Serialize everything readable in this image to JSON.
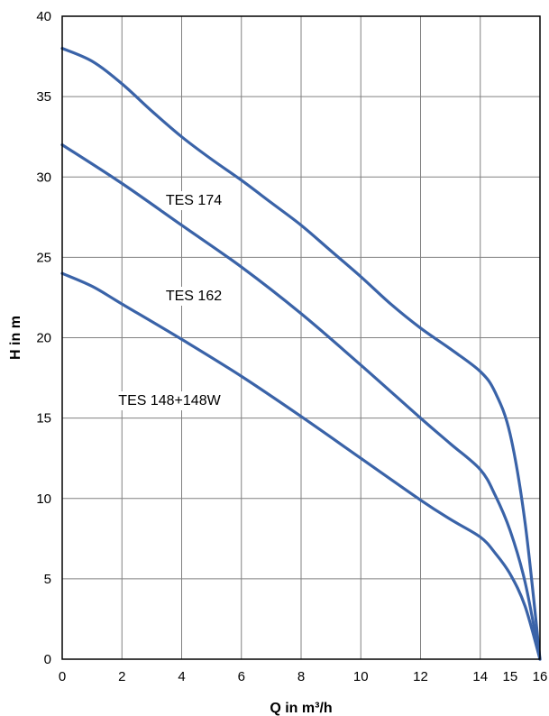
{
  "chart_data": {
    "type": "line",
    "xlabel": "Q in m³/h",
    "ylabel": "H in m",
    "xlim": [
      0,
      16
    ],
    "ylim": [
      0,
      40
    ],
    "xticks": [
      0,
      2,
      4,
      6,
      8,
      10,
      12,
      14,
      15,
      16
    ],
    "yticks": [
      0,
      5,
      10,
      15,
      20,
      25,
      30,
      35,
      40
    ],
    "grid": true,
    "line_color": "#3a63a8",
    "series": [
      {
        "name": "TES 174",
        "x": [
          0,
          1,
          2,
          3,
          4,
          5,
          6,
          7,
          8,
          9,
          10,
          11,
          12,
          13,
          14,
          14.5,
          15,
          15.5,
          16
        ],
        "y": [
          38,
          37.2,
          35.8,
          34.1,
          32.5,
          31.1,
          29.8,
          28.4,
          27.0,
          25.4,
          23.8,
          22.1,
          20.6,
          19.3,
          17.9,
          16.6,
          14.0,
          8.5,
          0
        ]
      },
      {
        "name": "TES 162",
        "x": [
          0,
          2,
          4,
          6,
          8,
          10,
          12,
          13,
          14,
          14.5,
          15,
          15.5,
          16
        ],
        "y": [
          32,
          29.6,
          27.0,
          24.4,
          21.5,
          18.3,
          15.0,
          13.4,
          11.8,
          10.2,
          8.0,
          4.8,
          0
        ]
      },
      {
        "name": "TES 148+148W",
        "x": [
          0,
          1,
          2,
          4,
          6,
          8,
          10,
          12,
          13,
          14,
          14.5,
          15,
          15.5,
          16
        ],
        "y": [
          24,
          23.2,
          22.1,
          19.9,
          17.6,
          15.1,
          12.5,
          9.9,
          8.7,
          7.6,
          6.6,
          5.3,
          3.3,
          0
        ]
      }
    ]
  }
}
